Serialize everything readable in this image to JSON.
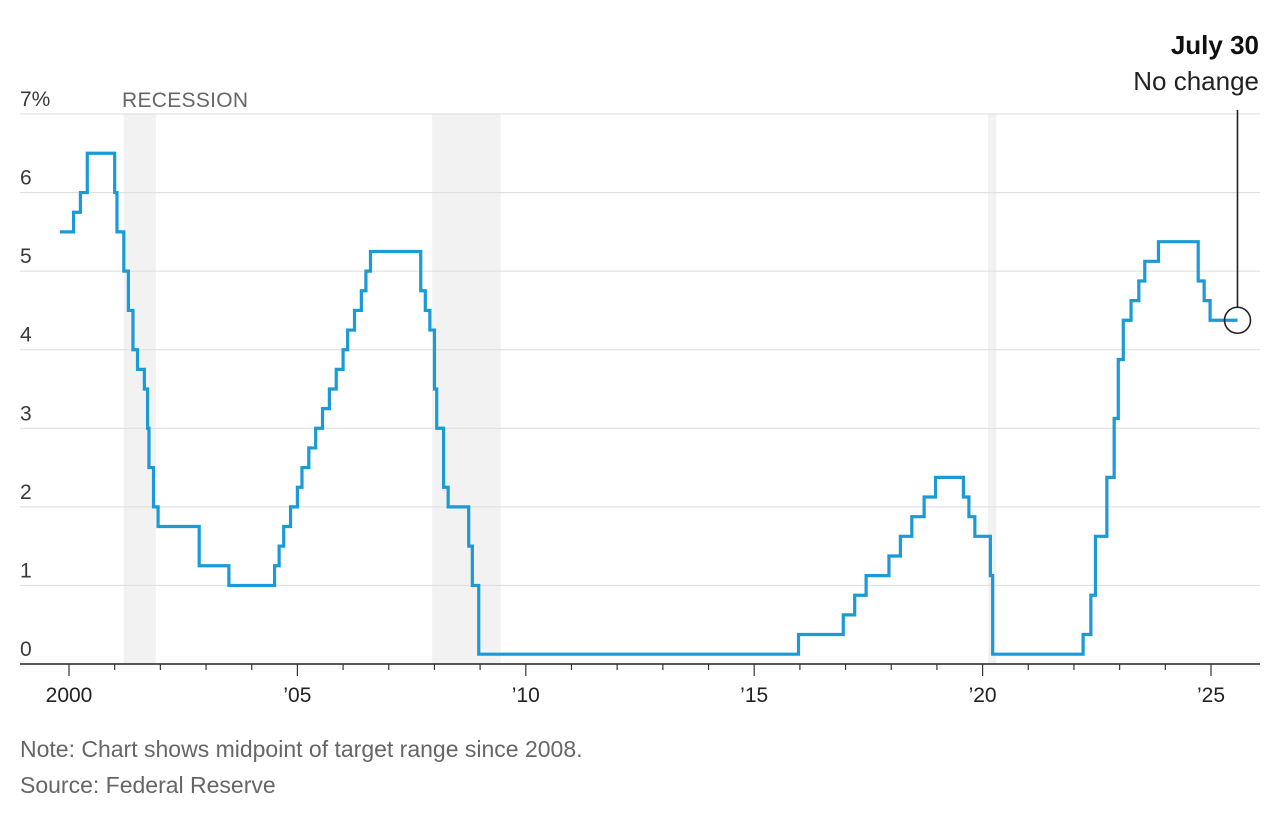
{
  "chart_data": {
    "type": "line",
    "step": true,
    "title": "",
    "xlabel": "",
    "ylabel": "",
    "unit_label": "7%",
    "xlim": [
      1999.5,
      2025.9
    ],
    "ylim": [
      0,
      7
    ],
    "y_ticks": [
      0,
      1,
      2,
      3,
      4,
      5,
      6,
      7
    ],
    "y_tick_labels": [
      "0",
      "1",
      "2",
      "3",
      "4",
      "5",
      "6",
      "7%"
    ],
    "x_ticks": [
      2000,
      2005,
      2010,
      2015,
      2020,
      2025
    ],
    "x_tick_labels": [
      "2000",
      "’05",
      "’10",
      "’15",
      "’20",
      "’25"
    ],
    "grid": "horizontal",
    "line_color": "#1a9ad6",
    "recession_label": "RECESSION",
    "recession_color": "#f2f2f2",
    "recessions": [
      [
        2001.2,
        2001.9
      ],
      [
        2007.95,
        2009.45
      ],
      [
        2020.12,
        2020.3
      ]
    ],
    "series": [
      {
        "points": [
          [
            1999.8,
            5.5
          ],
          [
            2000.1,
            5.75
          ],
          [
            2000.25,
            6.0
          ],
          [
            2000.4,
            6.5
          ],
          [
            2001.0,
            6.0
          ],
          [
            2001.05,
            5.5
          ],
          [
            2001.2,
            5.0
          ],
          [
            2001.3,
            4.5
          ],
          [
            2001.4,
            4.0
          ],
          [
            2001.5,
            3.75
          ],
          [
            2001.65,
            3.5
          ],
          [
            2001.72,
            3.0
          ],
          [
            2001.75,
            2.5
          ],
          [
            2001.85,
            2.0
          ],
          [
            2001.95,
            1.75
          ],
          [
            2002.85,
            1.25
          ],
          [
            2003.5,
            1.0
          ],
          [
            2004.5,
            1.25
          ],
          [
            2004.6,
            1.5
          ],
          [
            2004.7,
            1.75
          ],
          [
            2004.85,
            2.0
          ],
          [
            2005.0,
            2.25
          ],
          [
            2005.1,
            2.5
          ],
          [
            2005.25,
            2.75
          ],
          [
            2005.4,
            3.0
          ],
          [
            2005.55,
            3.25
          ],
          [
            2005.7,
            3.5
          ],
          [
            2005.85,
            3.75
          ],
          [
            2006.0,
            4.0
          ],
          [
            2006.1,
            4.25
          ],
          [
            2006.25,
            4.5
          ],
          [
            2006.4,
            4.75
          ],
          [
            2006.5,
            5.0
          ],
          [
            2006.6,
            5.25
          ],
          [
            2007.7,
            4.75
          ],
          [
            2007.8,
            4.5
          ],
          [
            2007.9,
            4.25
          ],
          [
            2008.0,
            3.5
          ],
          [
            2008.05,
            3.0
          ],
          [
            2008.2,
            2.25
          ],
          [
            2008.3,
            2.0
          ],
          [
            2008.75,
            1.5
          ],
          [
            2008.83,
            1.0
          ],
          [
            2008.97,
            0.125
          ],
          [
            2015.97,
            0.375
          ],
          [
            2016.95,
            0.625
          ],
          [
            2017.2,
            0.875
          ],
          [
            2017.45,
            1.125
          ],
          [
            2017.95,
            1.375
          ],
          [
            2018.2,
            1.625
          ],
          [
            2018.45,
            1.875
          ],
          [
            2018.72,
            2.125
          ],
          [
            2018.97,
            2.375
          ],
          [
            2019.58,
            2.125
          ],
          [
            2019.7,
            1.875
          ],
          [
            2019.83,
            1.625
          ],
          [
            2020.17,
            1.125
          ],
          [
            2020.22,
            0.125
          ],
          [
            2022.2,
            0.375
          ],
          [
            2022.37,
            0.875
          ],
          [
            2022.47,
            1.625
          ],
          [
            2022.72,
            2.375
          ],
          [
            2022.88,
            3.125
          ],
          [
            2022.97,
            3.875
          ],
          [
            2023.08,
            4.375
          ],
          [
            2023.25,
            4.625
          ],
          [
            2023.42,
            4.875
          ],
          [
            2023.55,
            5.125
          ],
          [
            2023.85,
            5.375
          ],
          [
            2024.72,
            4.875
          ],
          [
            2024.85,
            4.625
          ],
          [
            2024.98,
            4.375
          ],
          [
            2025.58,
            4.375
          ]
        ]
      }
    ],
    "annotation": {
      "date": "July 30",
      "text": "No change",
      "x": 2025.58,
      "y": 4.375
    },
    "note": "Note: Chart shows midpoint of target range since 2008.",
    "source": "Source: Federal Reserve"
  }
}
